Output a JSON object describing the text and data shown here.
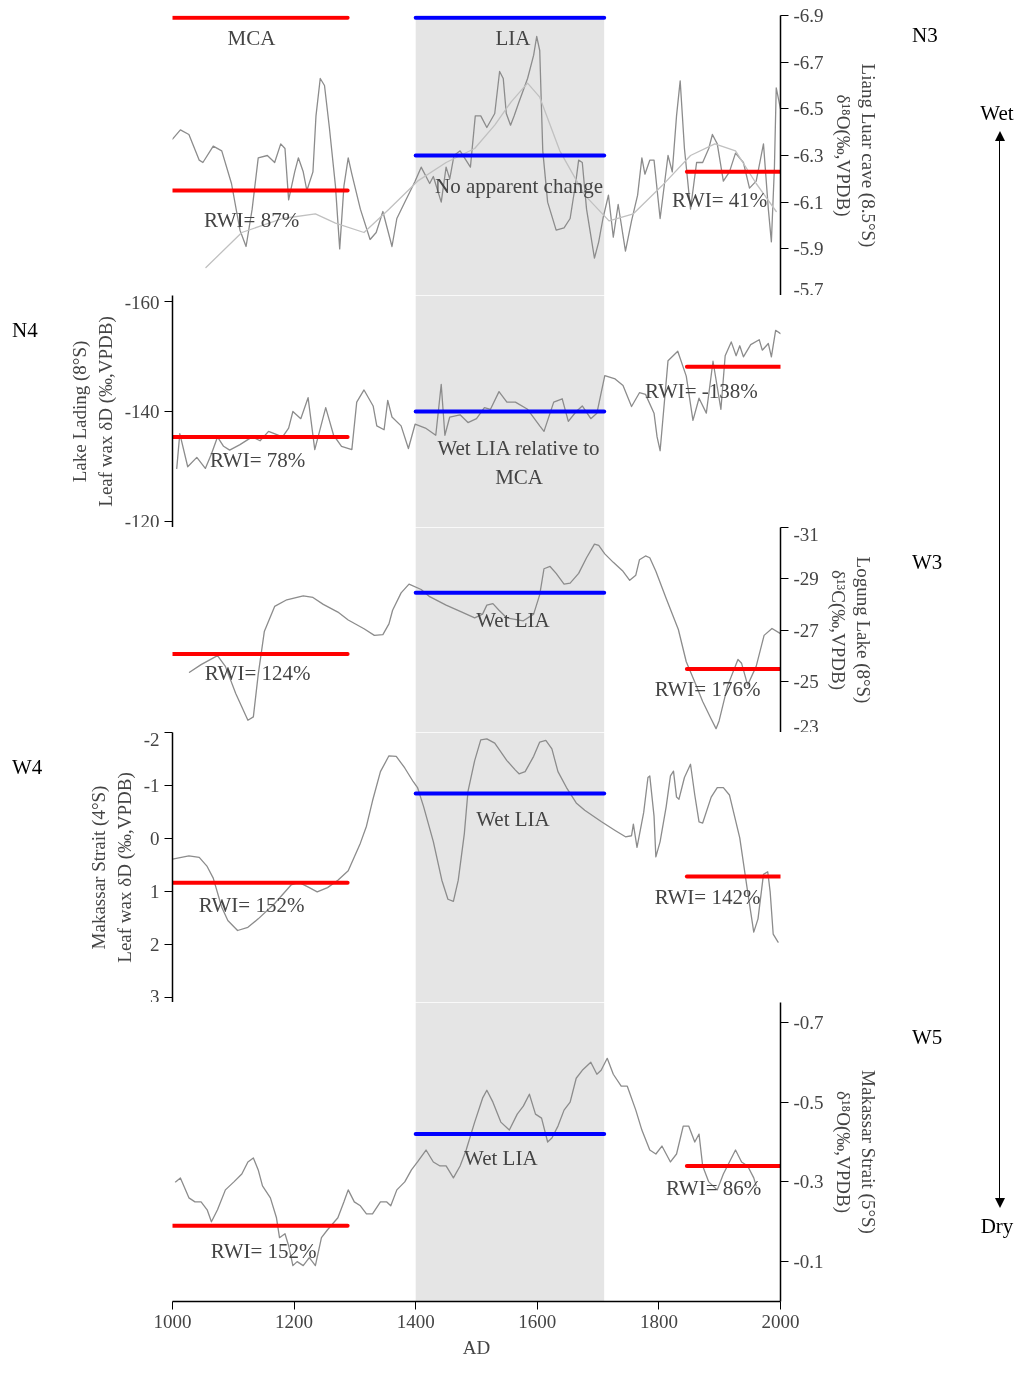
{
  "chart_data": [
    {
      "type": "line",
      "y2label": "Liang Luar cave (8.5°S)\nδ¹⁸O(‰,VPDB)",
      "xlim": [
        1000,
        2000
      ],
      "y2lim": [
        -5.7,
        -6.9
      ],
      "y2ticks": [
        -6.9,
        -6.7,
        -6.5,
        -6.3,
        -6.1,
        -5.9,
        -5.7
      ],
      "tick_labels": "y",
      "bands": [
        {
          "axis": "x",
          "from": 1400,
          "to": 1710,
          "color": "#e5e5e5"
        }
      ],
      "series": [
        {
          "axis": "y2",
          "color": "#8c8c8c",
          "x": [
            1000,
            1013,
            1027,
            1044,
            1050,
            1067,
            1081,
            1097,
            1111,
            1121,
            1131,
            1141,
            1156,
            1168,
            1178,
            1185,
            1191,
            1201,
            1207,
            1215,
            1221,
            1231,
            1236,
            1243,
            1250,
            1258,
            1268,
            1275,
            1282,
            1289,
            1295,
            1309,
            1325,
            1335,
            1346,
            1352,
            1361,
            1369,
            1382,
            1399,
            1409,
            1423,
            1429,
            1442,
            1450,
            1456,
            1463,
            1473,
            1490,
            1498,
            1507,
            1517,
            1530,
            1538,
            1544,
            1549,
            1556,
            1562,
            1570,
            1584,
            1594,
            1599,
            1604,
            1609,
            1617,
            1631,
            1644,
            1654,
            1663,
            1668,
            1674,
            1681,
            1694,
            1701,
            1708,
            1717,
            1725,
            1733,
            1745,
            1755,
            1765,
            1772,
            1777,
            1785,
            1792,
            1802,
            1815,
            1822,
            1829,
            1835,
            1842,
            1852,
            1862,
            1872,
            1882,
            1888,
            1896,
            1906,
            1916,
            1926,
            1939,
            1949,
            1960,
            1972,
            1980,
            1985,
            1990,
            1993,
            2000
          ],
          "values": [
            -6.37,
            -6.41,
            -6.39,
            -6.28,
            -6.27,
            -6.34,
            -6.32,
            -6.18,
            -5.98,
            -5.91,
            -6.07,
            -6.29,
            -6.3,
            -6.27,
            -6.35,
            -6.33,
            -6.11,
            -6.23,
            -6.29,
            -6.23,
            -6.15,
            -6.23,
            -6.47,
            -6.63,
            -6.6,
            -6.42,
            -6.17,
            -5.9,
            -6.17,
            -6.29,
            -6.22,
            -6.07,
            -5.94,
            -5.97,
            -6.06,
            -6.0,
            -5.91,
            -6.03,
            -6.1,
            -6.19,
            -6.25,
            -6.18,
            -6.21,
            -6.1,
            -6.25,
            -6.2,
            -6.3,
            -6.32,
            -6.25,
            -6.47,
            -6.47,
            -6.42,
            -6.48,
            -6.66,
            -6.63,
            -6.48,
            -6.43,
            -6.47,
            -6.53,
            -6.63,
            -6.73,
            -6.81,
            -6.75,
            -6.32,
            -6.1,
            -5.98,
            -5.99,
            -6.03,
            -6.18,
            -6.28,
            -6.27,
            -6.07,
            -5.86,
            -5.93,
            -6.03,
            -6.13,
            -5.95,
            -6.09,
            -5.89,
            -6.02,
            -6.13,
            -6.29,
            -6.22,
            -6.28,
            -6.28,
            -6.03,
            -6.3,
            -6.23,
            -6.47,
            -6.62,
            -6.33,
            -6.07,
            -6.27,
            -6.27,
            -6.33,
            -6.39,
            -6.35,
            -6.19,
            -6.23,
            -6.31,
            -6.27,
            -6.16,
            -6.19,
            -6.35,
            -6.07,
            -5.93,
            -6.25,
            -6.59,
            -6.5
          ]
        },
        {
          "axis": "y2",
          "color": "#c0c0c0",
          "x": [
            1055,
            1114,
            1181,
            1235,
            1268,
            1315,
            1356,
            1403,
            1450,
            1497,
            1530,
            1557,
            1584,
            1604,
            1637,
            1678,
            1718,
            1758,
            1805,
            1852,
            1892,
            1926,
            1960,
            1993
          ],
          "values": [
            -5.82,
            -5.97,
            -6.03,
            -6.05,
            -6.01,
            -5.97,
            -6.07,
            -6.19,
            -6.27,
            -6.33,
            -6.43,
            -6.53,
            -6.61,
            -6.55,
            -6.32,
            -6.13,
            -6.02,
            -6.05,
            -6.17,
            -6.3,
            -6.35,
            -6.32,
            -6.18,
            -6.06
          ]
        },
        {
          "axis": "y2",
          "color": "#ff0000",
          "x": [
            1000,
            1288
          ],
          "values": [
            -6.89,
            -6.89
          ]
        },
        {
          "axis": "y2",
          "color": "#0000ff",
          "x": [
            1400,
            1710
          ],
          "values": [
            -6.89,
            -6.89
          ]
        },
        {
          "axis": "y2",
          "color": "#ff0000",
          "x": [
            1000,
            1288
          ],
          "values": [
            -6.15,
            -6.15
          ]
        },
        {
          "axis": "y2",
          "color": "#0000ff",
          "x": [
            1400,
            1710
          ],
          "values": [
            -6.3,
            -6.3
          ]
        },
        {
          "axis": "y2",
          "color": "#ff0000",
          "x": [
            1846,
            2000
          ],
          "values": [
            -6.23,
            -6.23
          ]
        }
      ],
      "annotations": [
        "N3",
        "Wet",
        "MCA",
        "LIA",
        "RWI= 87%",
        "No apparent change",
        "RWI= 41%"
      ]
    },
    {
      "type": "line",
      "ylabel": "Lake Lading (8°S)\nLeaf wax δD (‰,VPDB)",
      "xlim": [
        1000,
        2000
      ],
      "ylim": [
        -119,
        -161
      ],
      "yticks": [
        -160,
        -140,
        -120
      ],
      "tick_labels": "y",
      "bands": [
        {
          "axis": "x",
          "from": 1400,
          "to": 1710,
          "color": "#e5e5e5"
        }
      ],
      "series": [
        {
          "color": "#8c8c8c",
          "x": [
            1007,
            1012,
            1025,
            1040,
            1054,
            1064,
            1074,
            1084,
            1094,
            1111,
            1131,
            1144,
            1158,
            1181,
            1191,
            1198,
            1211,
            1223,
            1234,
            1252,
            1265,
            1278,
            1295,
            1303,
            1315,
            1330,
            1336,
            1348,
            1354,
            1361,
            1376,
            1388,
            1399,
            1416,
            1433,
            1442,
            1448,
            1456,
            1473,
            1486,
            1500,
            1513,
            1523,
            1537,
            1550,
            1564,
            1584,
            1604,
            1611,
            1627,
            1641,
            1651,
            1664,
            1674,
            1688,
            1698,
            1711,
            1728,
            1741,
            1755,
            1768,
            1778,
            1792,
            1797,
            1802,
            1815,
            1831,
            1845,
            1856,
            1866,
            1878,
            1889,
            1902,
            1909,
            1919,
            1927,
            1933,
            1939,
            1951,
            1965,
            1970,
            1980,
            1985,
            1992,
            2000
          ],
          "values": [
            -129.7,
            -136.0,
            -130.0,
            -131.7,
            -129.7,
            -132.3,
            -135.4,
            -133.7,
            -133.0,
            -134.0,
            -135.4,
            -134.7,
            -136.4,
            -135.4,
            -137.0,
            -140.0,
            -138.7,
            -142.5,
            -133.1,
            -140.7,
            -135.7,
            -133.7,
            -133.1,
            -141.7,
            -143.9,
            -141.0,
            -137.4,
            -136.7,
            -142.0,
            -139.0,
            -137.4,
            -133.3,
            -137.7,
            -137.0,
            -135.7,
            -144.9,
            -135.7,
            -139.0,
            -139.4,
            -138.0,
            -138.7,
            -140.7,
            -140.4,
            -143.6,
            -141.7,
            -141.7,
            -140.4,
            -137.4,
            -136.4,
            -141.7,
            -142.3,
            -138.2,
            -140.0,
            -141.0,
            -138.7,
            -139.7,
            -146.5,
            -145.9,
            -144.7,
            -140.9,
            -143.4,
            -143.1,
            -139.7,
            -135.4,
            -132.9,
            -149.2,
            -150.9,
            -146.4,
            -138.4,
            -142.4,
            -139.7,
            -149.1,
            -140.4,
            -150.1,
            -152.6,
            -150.1,
            -151.9,
            -149.9,
            -152.1,
            -153.0,
            -151.1,
            -152.3,
            -149.9,
            -154.7,
            -154.1
          ]
        },
        {
          "color": "#ff0000",
          "x": [
            1000,
            1288
          ],
          "values": [
            -135.4,
            -135.4
          ]
        },
        {
          "color": "#0000ff",
          "x": [
            1400,
            1710
          ],
          "values": [
            -140.0,
            -140.0
          ]
        },
        {
          "color": "#ff0000",
          "x": [
            1846,
            2000
          ],
          "values": [
            -148.1,
            -148.1
          ]
        }
      ],
      "annotations": [
        "N4",
        "RWI= 78%",
        "Wet LIA relative to\nMCA",
        "RWI= -138%"
      ]
    },
    {
      "type": "line",
      "y2label": "Logung Lake (8°S)\nδ¹³C(‰,VPDB)",
      "xlim": [
        1000,
        2000
      ],
      "y2lim": [
        -23,
        -31
      ],
      "y2ticks": [
        -31,
        -29,
        -27,
        -25,
        -23
      ],
      "tick_labels": "y",
      "bands": [
        {
          "axis": "x",
          "from": 1400,
          "to": 1710,
          "color": "#e5e5e5"
        }
      ],
      "series": [
        {
          "axis": "y2",
          "color": "#8c8c8c",
          "x": [
            1028,
            1047,
            1074,
            1087,
            1104,
            1124,
            1133,
            1141,
            1151,
            1168,
            1188,
            1215,
            1231,
            1248,
            1272,
            1289,
            1315,
            1332,
            1346,
            1356,
            1362,
            1376,
            1389,
            1409,
            1423,
            1450,
            1476,
            1497,
            1510,
            1517,
            1527,
            1537,
            1550,
            1577,
            1594,
            1604,
            1611,
            1621,
            1631,
            1644,
            1654,
            1668,
            1681,
            1694,
            1701,
            1711,
            1725,
            1741,
            1752,
            1762,
            1768,
            1778,
            1785,
            1795,
            1812,
            1832,
            1845,
            1859,
            1872,
            1886,
            1894,
            1899,
            1913,
            1930,
            1936,
            1946,
            1960,
            1973,
            1986,
            2000
          ],
          "values": [
            -25.35,
            -25.65,
            -26.0,
            -25.58,
            -24.52,
            -23.48,
            -23.61,
            -25.27,
            -26.94,
            -27.92,
            -28.18,
            -28.33,
            -28.27,
            -28.0,
            -27.7,
            -27.39,
            -27.05,
            -26.79,
            -26.82,
            -27.24,
            -27.77,
            -28.45,
            -28.79,
            -28.58,
            -28.3,
            -27.97,
            -27.7,
            -27.47,
            -27.62,
            -27.97,
            -28.03,
            -27.77,
            -27.47,
            -27.36,
            -27.62,
            -28.38,
            -29.39,
            -29.48,
            -29.21,
            -28.79,
            -28.83,
            -29.21,
            -29.82,
            -30.35,
            -30.3,
            -29.97,
            -29.64,
            -29.29,
            -28.94,
            -29.14,
            -29.74,
            -29.89,
            -29.82,
            -29.29,
            -28.23,
            -27.02,
            -25.76,
            -24.97,
            -24.21,
            -23.53,
            -23.15,
            -23.45,
            -24.82,
            -25.85,
            -25.7,
            -24.85,
            -25.58,
            -26.79,
            -27.06,
            -26.86
          ]
        },
        {
          "axis": "y2",
          "color": "#ff0000",
          "x": [
            1000,
            1288
          ],
          "values": [
            -26.06,
            -26.06
          ]
        },
        {
          "axis": "y2",
          "color": "#0000ff",
          "x": [
            1400,
            1710
          ],
          "values": [
            -28.45,
            -28.45
          ]
        },
        {
          "axis": "y2",
          "color": "#ff0000",
          "x": [
            1846,
            2000
          ],
          "values": [
            -25.48,
            -25.48
          ]
        }
      ],
      "annotations": [
        "W3",
        "Wet LIA",
        "RWI= 124%",
        "RWI= 176%"
      ]
    },
    {
      "type": "line",
      "ylabel": "Makassar Strait (4°S)\nLeaf wax δD (‰,VPDB)",
      "xlim": [
        1000,
        2000
      ],
      "ylim": [
        3.1,
        -2
      ],
      "yticks": [
        -2,
        -1,
        0,
        1,
        2,
        3
      ],
      "tick_labels": "y",
      "bands": [
        {
          "axis": "x",
          "from": 1400,
          "to": 1710,
          "color": "#e5e5e5"
        }
      ],
      "series": [
        {
          "color": "#8c8c8c",
          "x": [
            1000,
            1027,
            1044,
            1057,
            1067,
            1081,
            1091,
            1107,
            1124,
            1141,
            1168,
            1195,
            1208,
            1225,
            1238,
            1255,
            1272,
            1289,
            1309,
            1319,
            1329,
            1342,
            1356,
            1368,
            1382,
            1396,
            1403,
            1413,
            1429,
            1443,
            1453,
            1462,
            1470,
            1480,
            1486,
            1497,
            1507,
            1517,
            1530,
            1550,
            1564,
            1570,
            1580,
            1594,
            1604,
            1614,
            1624,
            1634,
            1648,
            1664,
            1678,
            1705,
            1728,
            1745,
            1755,
            1758,
            1764,
            1775,
            1782,
            1785,
            1792,
            1795,
            1802,
            1812,
            1819,
            1824,
            1829,
            1833,
            1842,
            1852,
            1859,
            1866,
            1872,
            1886,
            1896,
            1906,
            1916,
            1933,
            1946,
            1956,
            1963,
            1972,
            1979,
            1983,
            1988,
            1996
          ],
          "values": [
            0.39,
            0.33,
            0.36,
            0.53,
            0.75,
            1.3,
            1.55,
            1.74,
            1.68,
            1.52,
            1.23,
            0.88,
            0.83,
            0.93,
            1.01,
            0.93,
            0.79,
            0.61,
            0.09,
            -0.23,
            -0.71,
            -1.26,
            -1.56,
            -1.55,
            -1.33,
            -1.07,
            -0.96,
            -0.6,
            0.06,
            0.79,
            1.15,
            1.19,
            0.79,
            -0.09,
            -0.89,
            -1.47,
            -1.86,
            -1.88,
            -1.8,
            -1.47,
            -1.29,
            -1.22,
            -1.26,
            -1.55,
            -1.82,
            -1.85,
            -1.69,
            -1.26,
            -0.96,
            -0.67,
            -0.53,
            -0.32,
            -0.15,
            -0.03,
            -0.05,
            -0.27,
            0.17,
            -0.49,
            -1.15,
            -1.18,
            -0.42,
            0.35,
            0.06,
            -0.6,
            -1.18,
            -1.27,
            -0.78,
            -0.74,
            -1.15,
            -1.4,
            -0.82,
            -0.31,
            -0.29,
            -0.78,
            -0.96,
            -0.96,
            -0.82,
            -0.01,
            1.01,
            1.77,
            1.52,
            0.68,
            0.63,
            1.01,
            1.81,
            1.96
          ]
        },
        {
          "color": "#ff0000",
          "x": [
            1000,
            1288
          ],
          "values": [
            0.84,
            0.84
          ]
        },
        {
          "color": "#0000ff",
          "x": [
            1400,
            1710
          ],
          "values": [
            -0.85,
            -0.85
          ]
        },
        {
          "color": "#ff0000",
          "x": [
            1846,
            2000
          ],
          "values": [
            0.72,
            0.72
          ]
        }
      ],
      "annotations": [
        "W4",
        "Wet LIA",
        "RWI= 152%",
        "RWI= 142%"
      ]
    },
    {
      "type": "line",
      "y2label": "Makassar Strait (5°S)\nδ¹⁸O(‰,VPDB)",
      "xlabel": "AD",
      "xlim": [
        1000,
        2000
      ],
      "y2lim": [
        0,
        -0.75
      ],
      "y2ticks": [
        -0.7,
        -0.5,
        -0.3,
        -0.1
      ],
      "xticks": [
        1000,
        1200,
        1400,
        1600,
        1800,
        2000
      ],
      "bands": [
        {
          "axis": "x",
          "from": 1400,
          "to": 1710,
          "color": "#e5e5e5"
        }
      ],
      "series": [
        {
          "axis": "y2",
          "color": "#8c8c8c",
          "x": [
            1005,
            1013,
            1027,
            1037,
            1047,
            1057,
            1064,
            1074,
            1087,
            1101,
            1114,
            1124,
            1133,
            1141,
            1148,
            1161,
            1171,
            1176,
            1185,
            1191,
            1198,
            1205,
            1215,
            1225,
            1235,
            1245,
            1255,
            1272,
            1282,
            1289,
            1299,
            1309,
            1319,
            1329,
            1342,
            1352,
            1359,
            1369,
            1382,
            1393,
            1403,
            1417,
            1429,
            1440,
            1450,
            1462,
            1473,
            1483,
            1497,
            1510,
            1517,
            1527,
            1540,
            1554,
            1567,
            1577,
            1587,
            1597,
            1607,
            1617,
            1624,
            1634,
            1644,
            1654,
            1664,
            1674,
            1688,
            1698,
            1705,
            1715,
            1725,
            1738,
            1748,
            1762,
            1772,
            1785,
            1795,
            1805,
            1819,
            1829,
            1840,
            1849,
            1859,
            1866,
            1872,
            1882,
            1896,
            1906,
            1916,
            1926,
            1936,
            1946,
            1956,
            1960
          ],
          "values": [
            -0.3,
            -0.31,
            -0.26,
            -0.25,
            -0.25,
            -0.23,
            -0.2,
            -0.23,
            -0.28,
            -0.3,
            -0.32,
            -0.35,
            -0.36,
            -0.33,
            -0.29,
            -0.26,
            -0.21,
            -0.16,
            -0.17,
            -0.14,
            -0.09,
            -0.1,
            -0.09,
            -0.11,
            -0.09,
            -0.16,
            -0.18,
            -0.21,
            -0.25,
            -0.28,
            -0.25,
            -0.24,
            -0.22,
            -0.22,
            -0.25,
            -0.25,
            -0.24,
            -0.28,
            -0.3,
            -0.33,
            -0.35,
            -0.38,
            -0.35,
            -0.34,
            -0.34,
            -0.31,
            -0.34,
            -0.38,
            -0.45,
            -0.51,
            -0.53,
            -0.5,
            -0.45,
            -0.43,
            -0.47,
            -0.49,
            -0.52,
            -0.47,
            -0.46,
            -0.4,
            -0.41,
            -0.44,
            -0.48,
            -0.5,
            -0.56,
            -0.58,
            -0.6,
            -0.57,
            -0.58,
            -0.61,
            -0.57,
            -0.54,
            -0.54,
            -0.48,
            -0.43,
            -0.38,
            -0.37,
            -0.39,
            -0.35,
            -0.37,
            -0.44,
            -0.44,
            -0.4,
            -0.42,
            -0.34,
            -0.3,
            -0.28,
            -0.32,
            -0.35,
            -0.38,
            -0.35,
            -0.34,
            -0.31,
            -0.29
          ]
        },
        {
          "axis": "y2",
          "color": "#ff0000",
          "x": [
            1000,
            1288
          ],
          "values": [
            -0.19,
            -0.19
          ]
        },
        {
          "axis": "y2",
          "color": "#0000ff",
          "x": [
            1400,
            1710
          ],
          "values": [
            -0.42,
            -0.42
          ]
        },
        {
          "axis": "y2",
          "color": "#ff0000",
          "x": [
            1846,
            2000
          ],
          "values": [
            -0.34,
            -0.34
          ]
        }
      ],
      "annotations": [
        "W5",
        "Dry",
        "Wet LIA",
        "RWI= 152%",
        "RWI= 86%"
      ]
    }
  ]
}
